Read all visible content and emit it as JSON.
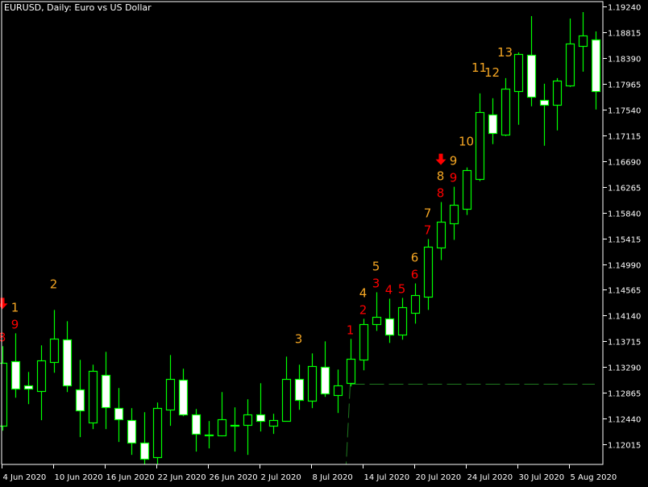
{
  "header": {
    "title": "EURUSD, Daily:  Euro vs US Dollar"
  },
  "colors": {
    "background": "#000000",
    "axis": "#ffffff",
    "candle_line": "#00ff00",
    "bear_body": "#ffffff",
    "bull_body": "#000000",
    "label_red": "#ff0000",
    "label_orange": "#f5a623",
    "level_line": "#1f7a1f"
  },
  "chart_data": {
    "type": "candlestick",
    "symbol": "EURUSD",
    "timeframe": "Daily",
    "ylim": [
      1.118,
      1.1935
    ],
    "grid": false,
    "y_ticks": [
      "1.19240",
      "1.18815",
      "1.18390",
      "1.17965",
      "1.17540",
      "1.17115",
      "1.16690",
      "1.16265",
      "1.15840",
      "1.15415",
      "1.14990",
      "1.14565",
      "1.14140",
      "1.13715",
      "1.13290",
      "1.12865",
      "1.12440",
      "1.12015"
    ],
    "x_ticks": [
      {
        "candle": 0,
        "label": "4 Jun 2020"
      },
      {
        "candle": 4,
        "label": "10 Jun 2020"
      },
      {
        "candle": 8,
        "label": "16 Jun 2020"
      },
      {
        "candle": 12,
        "label": "22 Jun 2020"
      },
      {
        "candle": 16,
        "label": "26 Jun 2020"
      },
      {
        "candle": 20,
        "label": "2 Jul 2020"
      },
      {
        "candle": 24,
        "label": "8 Jul 2020"
      },
      {
        "candle": 28,
        "label": "14 Jul 2020"
      },
      {
        "candle": 32,
        "label": "20 Jul 2020"
      },
      {
        "candle": 36,
        "label": "24 Jul 2020"
      },
      {
        "candle": 40,
        "label": "30 Jul 2020"
      },
      {
        "candle": 44,
        "label": "5 Aug 2020"
      }
    ],
    "candles": [
      {
        "o": 1.12321,
        "h": 1.13635,
        "l": 1.12241,
        "c": 1.13357
      },
      {
        "o": 1.13383,
        "h": 1.13848,
        "l": 1.12785,
        "c": 1.12932
      },
      {
        "o": 1.12985,
        "h": 1.1321,
        "l": 1.12679,
        "c": 1.12932
      },
      {
        "o": 1.12892,
        "h": 1.13649,
        "l": 1.12414,
        "c": 1.13396
      },
      {
        "o": 1.1337,
        "h": 1.14233,
        "l": 1.13197,
        "c": 1.13755
      },
      {
        "o": 1.13742,
        "h": 1.14047,
        "l": 1.12878,
        "c": 1.12985
      },
      {
        "o": 1.12918,
        "h": 1.1341,
        "l": 1.12135,
        "c": 1.12573
      },
      {
        "o": 1.12374,
        "h": 1.1333,
        "l": 1.12267,
        "c": 1.13224
      },
      {
        "o": 1.13157,
        "h": 1.13542,
        "l": 1.12267,
        "c": 1.12626
      },
      {
        "o": 1.12613,
        "h": 1.12945,
        "l": 1.12055,
        "c": 1.12427
      },
      {
        "o": 1.12414,
        "h": 1.12613,
        "l": 1.11842,
        "c": 1.12042
      },
      {
        "o": 1.12042,
        "h": 1.12546,
        "l": 1.11683,
        "c": 1.11776
      },
      {
        "o": 1.11803,
        "h": 1.12706,
        "l": 1.11683,
        "c": 1.12613
      },
      {
        "o": 1.12586,
        "h": 1.13489,
        "l": 1.12321,
        "c": 1.13091
      },
      {
        "o": 1.13078,
        "h": 1.13264,
        "l": 1.1248,
        "c": 1.12507
      },
      {
        "o": 1.12507,
        "h": 1.12599,
        "l": 1.11896,
        "c": 1.12188
      },
      {
        "o": 1.12161,
        "h": 1.124,
        "l": 1.11949,
        "c": 1.12175
      },
      {
        "o": 1.12161,
        "h": 1.12878,
        "l": 1.12148,
        "c": 1.12427
      },
      {
        "o": 1.12334,
        "h": 1.12626,
        "l": 1.11896,
        "c": 1.1234
      },
      {
        "o": 1.12334,
        "h": 1.12759,
        "l": 1.11842,
        "c": 1.12507
      },
      {
        "o": 1.12507,
        "h": 1.13024,
        "l": 1.12228,
        "c": 1.124
      },
      {
        "o": 1.12321,
        "h": 1.1252,
        "l": 1.12188,
        "c": 1.12414
      },
      {
        "o": 1.124,
        "h": 1.13463,
        "l": 1.12395,
        "c": 1.13091
      },
      {
        "o": 1.13091,
        "h": 1.1333,
        "l": 1.12586,
        "c": 1.12746
      },
      {
        "o": 1.12732,
        "h": 1.13516,
        "l": 1.12613,
        "c": 1.13303
      },
      {
        "o": 1.1329,
        "h": 1.13715,
        "l": 1.12799,
        "c": 1.12852
      },
      {
        "o": 1.12825,
        "h": 1.1325,
        "l": 1.12533,
        "c": 1.12985
      },
      {
        "o": 1.13024,
        "h": 1.13755,
        "l": 1.12971,
        "c": 1.13423
      },
      {
        "o": 1.1341,
        "h": 1.14087,
        "l": 1.13237,
        "c": 1.13994
      },
      {
        "o": 1.13994,
        "h": 1.14525,
        "l": 1.13888,
        "c": 1.14114
      },
      {
        "o": 1.14087,
        "h": 1.14419,
        "l": 1.13689,
        "c": 1.13822
      },
      {
        "o": 1.13822,
        "h": 1.14432,
        "l": 1.13742,
        "c": 1.14273
      },
      {
        "o": 1.1418,
        "h": 1.14671,
        "l": 1.14007,
        "c": 1.14472
      },
      {
        "o": 1.14446,
        "h": 1.15402,
        "l": 1.14233,
        "c": 1.15282
      },
      {
        "o": 1.15269,
        "h": 1.16013,
        "l": 1.15056,
        "c": 1.15694
      },
      {
        "o": 1.15667,
        "h": 1.16265,
        "l": 1.15389,
        "c": 1.15973
      },
      {
        "o": 1.15906,
        "h": 1.16584,
        "l": 1.158,
        "c": 1.16544
      },
      {
        "o": 1.16398,
        "h": 1.17806,
        "l": 1.16358,
        "c": 1.175
      },
      {
        "o": 1.1746,
        "h": 1.17726,
        "l": 1.16969,
        "c": 1.17155
      },
      {
        "o": 1.17128,
        "h": 1.18058,
        "l": 1.17101,
        "c": 1.17885
      },
      {
        "o": 1.17845,
        "h": 1.18483,
        "l": 1.17288,
        "c": 1.18456
      },
      {
        "o": 1.18443,
        "h": 1.19081,
        "l": 1.17593,
        "c": 1.17753
      },
      {
        "o": 1.17699,
        "h": 1.17965,
        "l": 1.16942,
        "c": 1.1762
      },
      {
        "o": 1.1762,
        "h": 1.18058,
        "l": 1.17195,
        "c": 1.18018
      },
      {
        "o": 1.17938,
        "h": 1.19041,
        "l": 1.17912,
        "c": 1.18629
      },
      {
        "o": 1.18589,
        "h": 1.19147,
        "l": 1.18164,
        "c": 1.18762
      },
      {
        "o": 1.18695,
        "h": 1.18828,
        "l": 1.1754,
        "c": 1.17845
      }
    ],
    "labels": [
      {
        "candle": 0,
        "row": "lower",
        "text": "8",
        "color": "red"
      },
      {
        "candle": 0,
        "row": "arrow",
        "text": "down-arrow",
        "color": "red"
      },
      {
        "candle": 1,
        "row": "lower",
        "text": "9",
        "color": "red"
      },
      {
        "candle": 1,
        "row": "upper",
        "text": "1",
        "color": "orange"
      },
      {
        "candle": 4,
        "row": "upper",
        "text": "2",
        "color": "orange"
      },
      {
        "candle": 23,
        "row": "upper",
        "text": "3",
        "color": "orange"
      },
      {
        "candle": 27,
        "row": "lower",
        "text": "1",
        "color": "red"
      },
      {
        "candle": 28,
        "row": "lower",
        "text": "2",
        "color": "red"
      },
      {
        "candle": 28,
        "row": "upper",
        "text": "4",
        "color": "orange"
      },
      {
        "candle": 29,
        "row": "lower",
        "text": "3",
        "color": "red"
      },
      {
        "candle": 29,
        "row": "upper",
        "text": "5",
        "color": "orange"
      },
      {
        "candle": 30,
        "row": "lower",
        "text": "4",
        "color": "red"
      },
      {
        "candle": 31,
        "row": "lower",
        "text": "5",
        "color": "red"
      },
      {
        "candle": 32,
        "row": "lower",
        "text": "6",
        "color": "red"
      },
      {
        "candle": 32,
        "row": "upper",
        "text": "6",
        "color": "orange"
      },
      {
        "candle": 33,
        "row": "lower",
        "text": "7",
        "color": "red"
      },
      {
        "candle": 33,
        "row": "upper",
        "text": "7",
        "color": "orange"
      },
      {
        "candle": 34,
        "row": "lower",
        "text": "8",
        "color": "red"
      },
      {
        "candle": 34,
        "row": "upper",
        "text": "8",
        "color": "orange"
      },
      {
        "candle": 34,
        "row": "arrow",
        "text": "down-arrow",
        "color": "red"
      },
      {
        "candle": 35,
        "row": "lower",
        "text": "9",
        "color": "red"
      },
      {
        "candle": 35,
        "row": "upper",
        "text": "9",
        "color": "orange"
      },
      {
        "candle": 36,
        "row": "upper",
        "text": "10",
        "color": "orange"
      },
      {
        "candle": 37,
        "row": "upper",
        "text": "11",
        "color": "orange"
      },
      {
        "candle": 38,
        "row": "upper",
        "text": "12",
        "color": "orange"
      },
      {
        "candle": 39,
        "row": "upper",
        "text": "13",
        "color": "orange"
      }
    ],
    "support_level": {
      "price": 1.13011,
      "from_candle": 27,
      "style": "dashed"
    }
  }
}
